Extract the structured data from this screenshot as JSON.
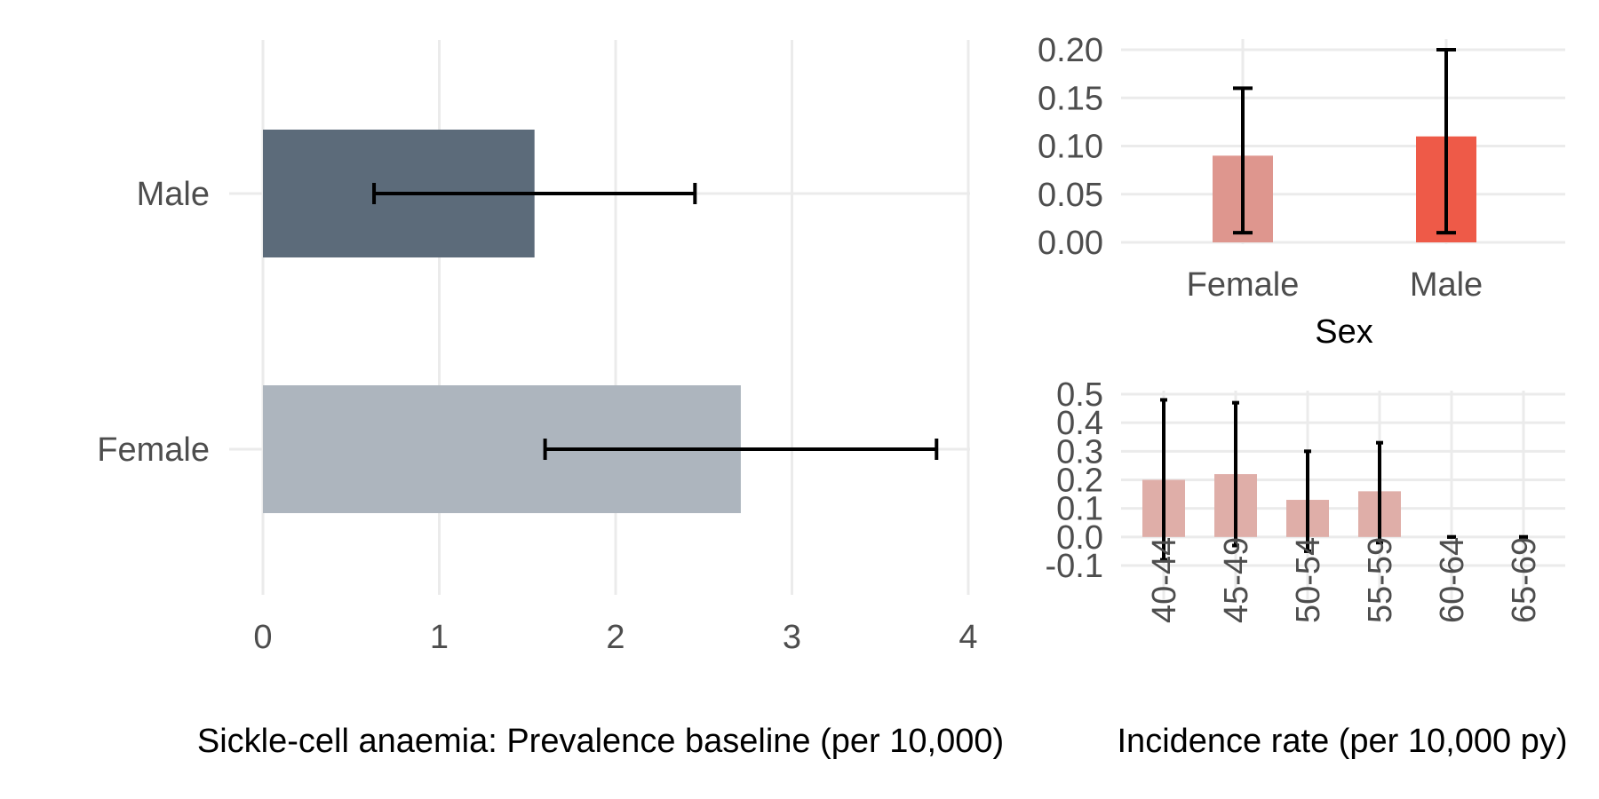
{
  "colors": {
    "prevalence_male": "#5c6b7a",
    "prevalence_female": "#adb5be",
    "sex_female": "#de968e",
    "sex_male": "#ee5a48",
    "age_bars": "#dfaea8",
    "grid": "#ebebeb",
    "error_bars": "#000000"
  },
  "chart_data": [
    {
      "id": "prevalence",
      "type": "bar",
      "orientation": "horizontal",
      "categories": [
        "Male",
        "Female"
      ],
      "values": [
        1.54,
        2.71
      ],
      "error_low": [
        0.63,
        1.6
      ],
      "error_high": [
        2.45,
        3.82
      ],
      "xlabel": "Sickle-cell anaemia: Prevalence baseline (per 10,000)",
      "ylabel": "",
      "xlim": [
        0,
        4
      ],
      "x_ticks": [
        "0",
        "1",
        "2",
        "3",
        "4"
      ],
      "grid": true
    },
    {
      "id": "incidence_sex",
      "type": "bar",
      "categories": [
        "Female",
        "Male"
      ],
      "values": [
        0.09,
        0.11
      ],
      "error_low": [
        0.01,
        0.01
      ],
      "error_high": [
        0.16,
        0.2
      ],
      "xlabel": "Sex",
      "ylabel": "",
      "ylim": [
        0,
        0.2
      ],
      "y_ticks": [
        "0.00",
        "0.05",
        "0.10",
        "0.15",
        "0.20"
      ],
      "grid": true
    },
    {
      "id": "incidence_age",
      "type": "bar",
      "categories": [
        "40-44",
        "45-49",
        "50-54",
        "55-59",
        "60-64",
        "65-69"
      ],
      "values": [
        0.2,
        0.22,
        0.13,
        0.16,
        0.0,
        0.0
      ],
      "error_low": [
        -0.08,
        -0.03,
        -0.05,
        -0.02,
        0.0,
        0.0
      ],
      "error_high": [
        0.48,
        0.47,
        0.3,
        0.33,
        0.0,
        0.0
      ],
      "xlabel": "Incidence rate (per 10,000 py)",
      "ylabel": "",
      "ylim": [
        -0.1,
        0.5
      ],
      "y_ticks": [
        "-0.1",
        "0.0",
        "0.1",
        "0.2",
        "0.3",
        "0.4",
        "0.5"
      ],
      "grid": true
    }
  ]
}
